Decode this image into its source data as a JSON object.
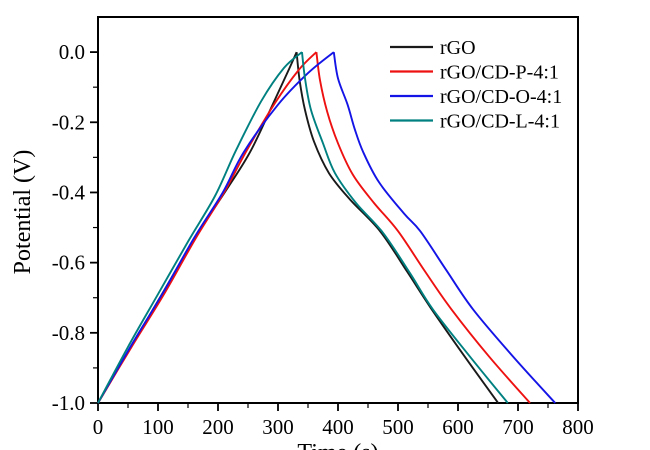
{
  "figure": {
    "background": "#ffffff",
    "frame_color": "#000000",
    "y_axis_label": "Potential (V)",
    "x_axis_label_partial": "Time (s)"
  },
  "chart_data": {
    "type": "line",
    "title": "",
    "xlabel": "Time (s)",
    "ylabel": "Potential (V)",
    "xlim": [
      0,
      800
    ],
    "ylim": [
      -1.0,
      0.1
    ],
    "grid": false,
    "legend_position": "upper-right",
    "x_major_ticks": [
      0,
      100,
      200,
      300,
      400,
      500,
      600,
      700,
      800
    ],
    "x_tick_labels": [
      "0",
      "100",
      "200",
      "300",
      "400",
      "500",
      "600",
      "700",
      "800"
    ],
    "x_minor_ticks": [
      50,
      150,
      250,
      350,
      450,
      550,
      650,
      750
    ],
    "y_major_ticks": [
      0.0,
      -0.2,
      -0.4,
      -0.6,
      -0.8,
      -1.0
    ],
    "y_tick_labels": [
      "0.0",
      "-0.2",
      "-0.4",
      "-0.6",
      "-0.8",
      "-1.0"
    ],
    "y_minor_ticks": [
      -0.1,
      -0.3,
      -0.5,
      -0.7,
      -0.9
    ],
    "series": [
      {
        "name": "rGO",
        "color": "#1a1a1a",
        "charge": [
          [
            0,
            -1.0
          ],
          [
            55,
            -0.84
          ],
          [
            110,
            -0.68
          ],
          [
            165,
            -0.52
          ],
          [
            215,
            -0.39
          ],
          [
            255,
            -0.28
          ],
          [
            295,
            -0.135
          ],
          [
            318,
            -0.05
          ],
          [
            331,
            0.0
          ]
        ],
        "discharge": [
          [
            331,
            0.0
          ],
          [
            336,
            -0.08
          ],
          [
            345,
            -0.165
          ],
          [
            360,
            -0.255
          ],
          [
            385,
            -0.345
          ],
          [
            420,
            -0.42
          ],
          [
            470,
            -0.51
          ],
          [
            515,
            -0.625
          ],
          [
            555,
            -0.73
          ],
          [
            610,
            -0.865
          ],
          [
            667,
            -1.0
          ]
        ],
        "peak_time_s": 331,
        "discharge_end_s": 667
      },
      {
        "name": "rGO/CD-P-4:1",
        "color": "#ee1111",
        "charge": [
          [
            0,
            -1.0
          ],
          [
            56,
            -0.84
          ],
          [
            110,
            -0.69
          ],
          [
            163,
            -0.53
          ],
          [
            210,
            -0.4
          ],
          [
            248,
            -0.28
          ],
          [
            295,
            -0.145
          ],
          [
            335,
            -0.05
          ],
          [
            364,
            0.0
          ]
        ],
        "discharge": [
          [
            364,
            0.0
          ],
          [
            370,
            -0.08
          ],
          [
            382,
            -0.17
          ],
          [
            400,
            -0.26
          ],
          [
            425,
            -0.35
          ],
          [
            460,
            -0.43
          ],
          [
            500,
            -0.51
          ],
          [
            545,
            -0.625
          ],
          [
            589,
            -0.733
          ],
          [
            652,
            -0.868
          ],
          [
            720,
            -1.0
          ]
        ],
        "peak_time_s": 364,
        "discharge_end_s": 720
      },
      {
        "name": "rGO/CD-O-4:1",
        "color": "#1414e6",
        "charge": [
          [
            0,
            -1.0
          ],
          [
            54,
            -0.84
          ],
          [
            107,
            -0.69
          ],
          [
            160,
            -0.53
          ],
          [
            208,
            -0.4
          ],
          [
            243,
            -0.285
          ],
          [
            300,
            -0.15
          ],
          [
            350,
            -0.06
          ],
          [
            393,
            0.0
          ]
        ],
        "discharge": [
          [
            393,
            0.0
          ],
          [
            400,
            -0.075
          ],
          [
            416,
            -0.15
          ],
          [
            428,
            -0.22
          ],
          [
            442,
            -0.285
          ],
          [
            468,
            -0.37
          ],
          [
            510,
            -0.46
          ],
          [
            537,
            -0.51
          ],
          [
            580,
            -0.62
          ],
          [
            625,
            -0.733
          ],
          [
            692,
            -0.868
          ],
          [
            762,
            -1.0
          ]
        ],
        "peak_time_s": 393,
        "discharge_end_s": 762
      },
      {
        "name": "rGO/CD-L-4:1",
        "color": "#008080",
        "charge": [
          [
            0,
            -1.0
          ],
          [
            50,
            -0.84
          ],
          [
            100,
            -0.69
          ],
          [
            150,
            -0.54
          ],
          [
            195,
            -0.41
          ],
          [
            230,
            -0.28
          ],
          [
            272,
            -0.14
          ],
          [
            310,
            -0.045
          ],
          [
            340,
            0.0
          ]
        ],
        "discharge": [
          [
            340,
            0.0
          ],
          [
            345,
            -0.075
          ],
          [
            355,
            -0.165
          ],
          [
            375,
            -0.26
          ],
          [
            395,
            -0.345
          ],
          [
            430,
            -0.43
          ],
          [
            475,
            -0.515
          ],
          [
            520,
            -0.63
          ],
          [
            558,
            -0.733
          ],
          [
            620,
            -0.868
          ],
          [
            683,
            -1.0
          ]
        ],
        "peak_time_s": 340,
        "discharge_end_s": 683
      }
    ]
  }
}
